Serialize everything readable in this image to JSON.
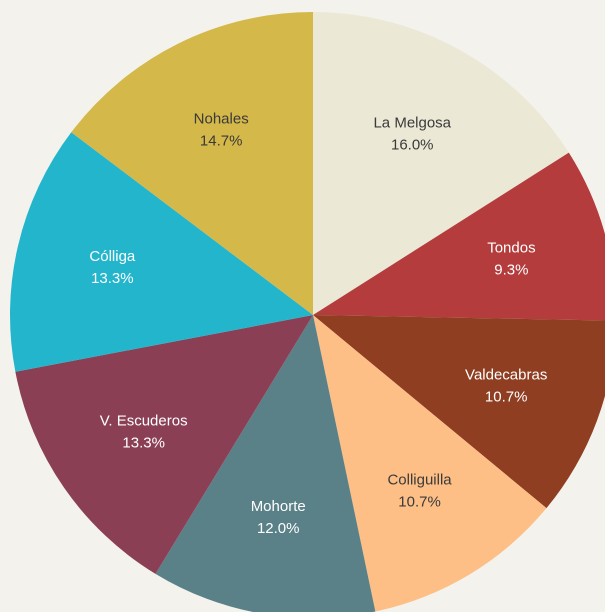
{
  "chart_data": {
    "type": "pie",
    "categories": [
      "La Melgosa",
      "Tondos",
      "Valdecabras",
      "Colliguilla",
      "Mohorte",
      "V. Escuderos",
      "Cólliga",
      "Nohales"
    ],
    "values": [
      16.0,
      9.3,
      10.7,
      10.7,
      12.0,
      13.3,
      13.3,
      14.7
    ],
    "value_labels": [
      "16.0%",
      "9.3%",
      "10.7%",
      "10.7%",
      "12.0%",
      "13.3%",
      "13.3%",
      "14.7%"
    ],
    "colors": [
      "#ebe9d6",
      "#b43c3c",
      "#8f3e22",
      "#fdbf86",
      "#5a8088",
      "#8a3f55",
      "#22b5cc",
      "#d4b84a"
    ]
  }
}
